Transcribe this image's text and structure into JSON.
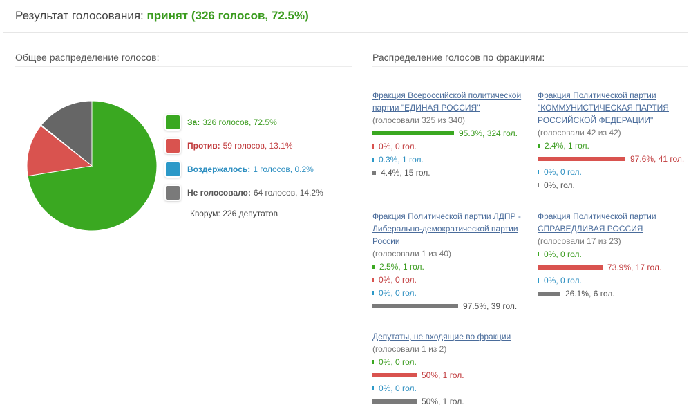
{
  "header": {
    "prefix": "Результат голосования: ",
    "result": "принят (326 голосов, 72.5%)"
  },
  "left_title": "Общее распределение голосов:",
  "right_title": "Распределение голосов по фракциям:",
  "colors": {
    "za": "#3aa821",
    "protiv": "#d9534f",
    "vozd": "#2c99c8",
    "ne": "#666666"
  },
  "legend": [
    {
      "name": "За:",
      "text": "326 голосов, 72.5%",
      "cls": "za"
    },
    {
      "name": "Против:",
      "text": "59 голосов, 13.1%",
      "cls": "pr"
    },
    {
      "name": "Воздержалось:",
      "text": "1 голосов, 0.2%",
      "cls": "vo"
    },
    {
      "name": "Не голосовало:",
      "text": "64 голосов, 14.2%",
      "cls": "ng"
    }
  ],
  "quorum": "Кворум: 226 депутатов",
  "pie": [
    {
      "label": "За",
      "percent": 72.5,
      "color": "#3aa821"
    },
    {
      "label": "Против",
      "percent": 13.1,
      "color": "#d9534f"
    },
    {
      "label": "Воздержалось",
      "percent": 0.2,
      "color": "#2c99c8"
    },
    {
      "label": "Не голосовало",
      "percent": 14.2,
      "color": "#666666"
    }
  ],
  "factions": [
    {
      "name": "Фракция Всероссийской политической партии \"ЕДИНАЯ РОССИЯ\"",
      "sub": "(голосовали 325 из 340)",
      "stats": [
        {
          "cls": "za",
          "text": "95.3%, 324 гол.",
          "value": 95.3
        },
        {
          "cls": "pr",
          "text": "0%, 0 гол.",
          "value": 0
        },
        {
          "cls": "vo",
          "text": "0.3%, 1 гол.",
          "value": 0.3
        },
        {
          "cls": "ng",
          "text": "4.4%, 15 гол.",
          "value": 4.4
        }
      ]
    },
    {
      "name": "Фракция Политической партии \"КОММУНИСТИЧЕСКАЯ ПАРТИЯ РОССИЙСКОЙ ФЕДЕРАЦИИ\"",
      "sub": "(голосовали 42 из 42)",
      "stats": [
        {
          "cls": "za",
          "text": "2.4%, 1 гол.",
          "value": 2.4
        },
        {
          "cls": "pr",
          "text": "97.6%, 41 гол.",
          "value": 97.6
        },
        {
          "cls": "vo",
          "text": "0%, 0 гол.",
          "value": 0
        },
        {
          "cls": "ng",
          "text": "0%, гол.",
          "value": 0
        }
      ]
    },
    {
      "name": "Фракция Политической партии ЛДПР - Либерально-демократической партии России",
      "sub": "(голосовали 1 из 40)",
      "stats": [
        {
          "cls": "za",
          "text": "2.5%, 1 гол.",
          "value": 2.5
        },
        {
          "cls": "pr",
          "text": "0%, 0 гол.",
          "value": 0
        },
        {
          "cls": "vo",
          "text": "0%, 0 гол.",
          "value": 0
        },
        {
          "cls": "ng",
          "text": "97.5%, 39 гол.",
          "value": 97.5
        }
      ]
    },
    {
      "name": "Фракция Политической партии СПРАВЕДЛИВАЯ РОССИЯ",
      "sub": "(голосовали 17 из 23)",
      "stats": [
        {
          "cls": "za",
          "text": "0%, 0 гол.",
          "value": 0
        },
        {
          "cls": "pr",
          "text": "73.9%, 17 гол.",
          "value": 73.9
        },
        {
          "cls": "vo",
          "text": "0%, 0 гол.",
          "value": 0
        },
        {
          "cls": "ng",
          "text": "26.1%, 6 гол.",
          "value": 26.1
        }
      ]
    },
    {
      "name": "Депутаты, не входящие во фракции",
      "sub": "(голосовали 1 из 2)",
      "stats": [
        {
          "cls": "za",
          "text": "0%, 0 гол.",
          "value": 0
        },
        {
          "cls": "pr",
          "text": "50%, 1 гол.",
          "value": 50
        },
        {
          "cls": "vo",
          "text": "0%, 0 гол.",
          "value": 0
        },
        {
          "cls": "ng",
          "text": "50%, 1 гол.",
          "value": 50
        }
      ]
    }
  ]
}
